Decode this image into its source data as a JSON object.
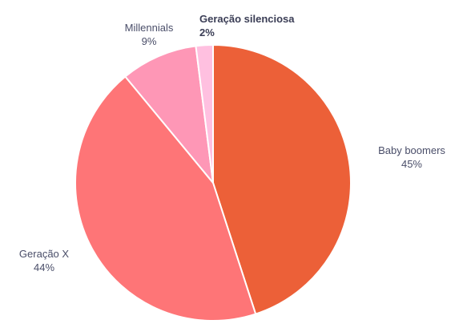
{
  "chart_data": {
    "type": "pie",
    "slices": [
      {
        "label": "Baby boomers",
        "value": 45,
        "display": "45%",
        "color": "#ec6038",
        "emphasis": false
      },
      {
        "label": "Geração X",
        "value": 44,
        "display": "44%",
        "color": "#fe7577",
        "emphasis": false
      },
      {
        "label": "Millennials",
        "value": 9,
        "display": "9%",
        "color": "#fe97b6",
        "emphasis": false
      },
      {
        "label": "Geração silenciosa",
        "value": 2,
        "display": "2%",
        "color": "#ffc0e0",
        "emphasis": true
      }
    ]
  }
}
